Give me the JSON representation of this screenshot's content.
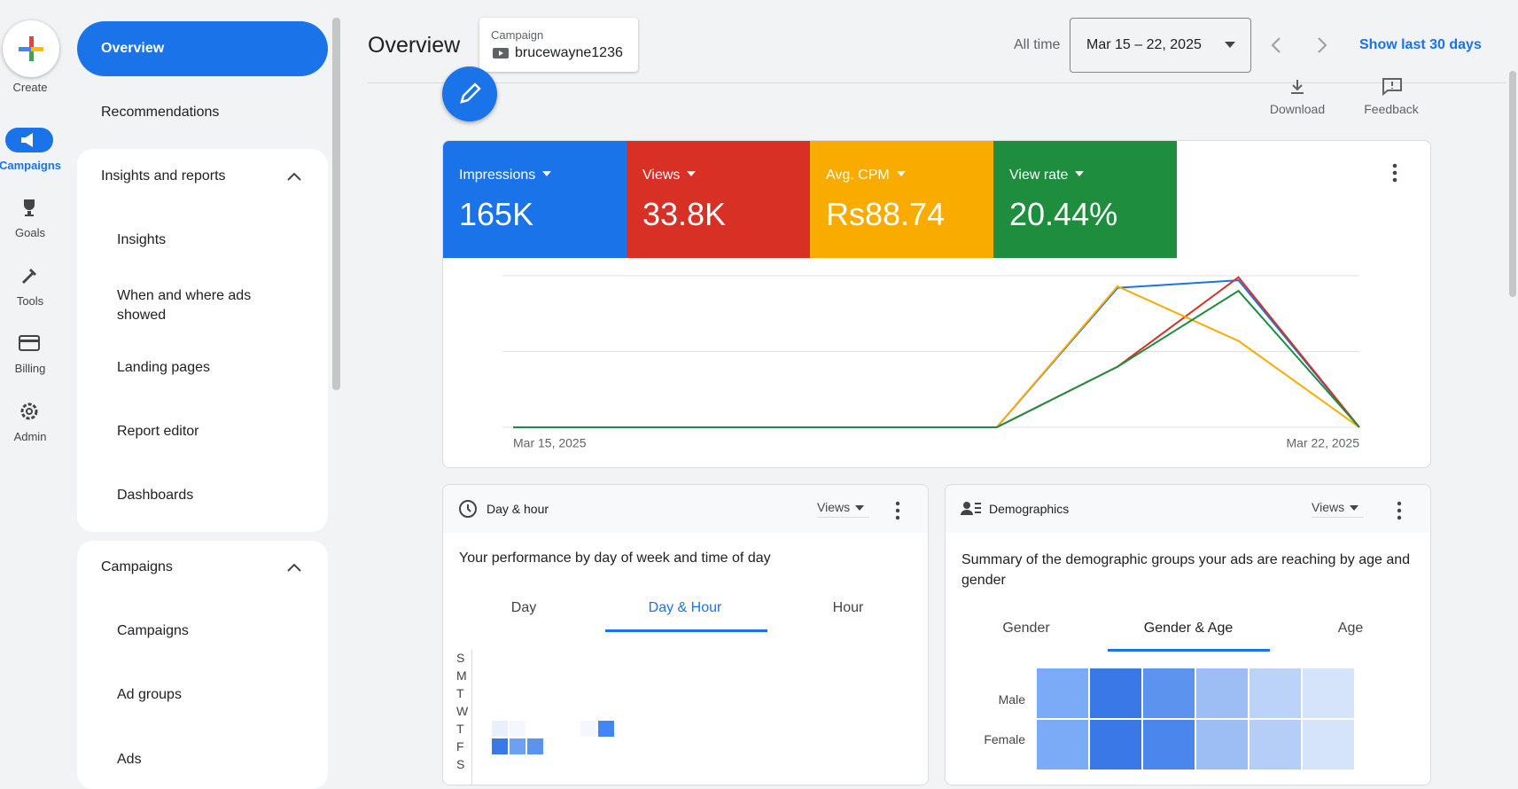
{
  "rail": {
    "create": "Create",
    "items": [
      "Campaigns",
      "Goals",
      "Tools",
      "Billing",
      "Admin"
    ]
  },
  "nav": {
    "overview": "Overview",
    "recommendations": "Recommendations",
    "groups": [
      {
        "title": "Insights and reports",
        "items": [
          "Insights",
          "When and where ads showed",
          "Landing pages",
          "Report editor",
          "Dashboards"
        ]
      },
      {
        "title": "Campaigns",
        "items": [
          "Campaigns",
          "Ad groups",
          "Ads"
        ]
      }
    ]
  },
  "header": {
    "title": "Overview",
    "campaign_label": "Campaign",
    "campaign_name": "brucewayne1236",
    "range_label": "All time",
    "date_range": "Mar 15 – 22, 2025",
    "show_last": "Show last 30 days"
  },
  "toolbar": {
    "download": "Download",
    "feedback": "Feedback"
  },
  "metrics": [
    {
      "name": "Impressions",
      "value": "165K",
      "color": "#1a73e8"
    },
    {
      "name": "Views",
      "value": "33.8K",
      "color": "#d93025"
    },
    {
      "name": "Avg. CPM",
      "value": "Rs88.74",
      "color": "#f9ab00"
    },
    {
      "name": "View rate",
      "value": "20.44%",
      "color": "#1e8e3e"
    }
  ],
  "performance_chart": {
    "type": "line",
    "ylim": [
      0,
      100
    ],
    "x_labels": [
      "Mar 15, 2025",
      "Mar 22, 2025"
    ],
    "series": [
      {
        "name": "Impressions",
        "color": "#1a73e8",
        "values": [
          0,
          0,
          0,
          0,
          0,
          92,
          97,
          0
        ]
      },
      {
        "name": "Views",
        "color": "#d93025",
        "values": [
          0,
          0,
          0,
          0,
          0,
          40,
          99,
          0
        ]
      },
      {
        "name": "Avg. CPM",
        "color": "#f9ab00",
        "values": [
          0,
          0,
          0,
          0,
          0,
          93,
          57,
          0
        ]
      },
      {
        "name": "View rate",
        "color": "#1e8e3e",
        "values": [
          0,
          0,
          0,
          0,
          0,
          40,
          90,
          0
        ]
      }
    ]
  },
  "day_hour": {
    "title": "Day & hour",
    "metric": "Views",
    "description": "Your performance by day of week and time of day",
    "tabs": [
      "Day",
      "Day & Hour",
      "Hour"
    ],
    "days": [
      "S",
      "M",
      "T",
      "W",
      "T",
      "F",
      "S"
    ]
  },
  "demographics": {
    "title": "Demographics",
    "metric": "Views",
    "description": "Summary of the demographic groups your ads are reaching by age and gender",
    "tabs": [
      "Gender",
      "Gender & Age",
      "Age"
    ],
    "rows": [
      "Male",
      "Female"
    ]
  }
}
